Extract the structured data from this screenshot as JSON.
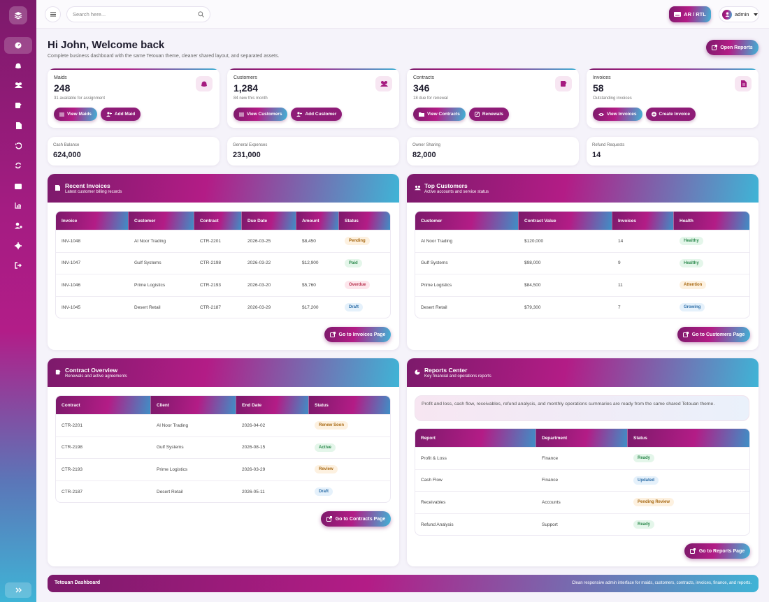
{
  "topbar": {
    "search_placeholder": "Search here...",
    "rtl_label": "AR / RTL",
    "user_label": "admin"
  },
  "header": {
    "title": "Hi John, Welcome back",
    "subtitle": "Complete business dashboard with the same Tetouan theme, cleaner shared layout, and separated assets.",
    "open_reports": "Open Reports"
  },
  "stats": [
    {
      "label": "Maids",
      "value": "248",
      "sub": "31 available for assignment",
      "icon": "broom-icon",
      "btn1": "View Maids",
      "btn2": "Add Maid"
    },
    {
      "label": "Customers",
      "value": "1,284",
      "sub": "84 new this month",
      "icon": "users-icon",
      "btn1": "View Customers",
      "btn2": "Add Customer"
    },
    {
      "label": "Contracts",
      "value": "346",
      "sub": "18 due for renewal",
      "icon": "contract-icon",
      "btn1": "View Contracts",
      "btn2": "Renewals"
    },
    {
      "label": "Invoices",
      "value": "58",
      "sub": "Outstanding invoices",
      "icon": "invoice-icon",
      "btn1": "View Invoices",
      "btn2": "Create Invoice"
    }
  ],
  "mini": [
    {
      "label": "Cash Balance",
      "value": "624,000"
    },
    {
      "label": "General Expenses",
      "value": "231,000"
    },
    {
      "label": "Owner Sharing",
      "value": "82,000"
    },
    {
      "label": "Refund Requests",
      "value": "14"
    }
  ],
  "invoices": {
    "title": "Recent Invoices",
    "subtitle": "Latest customer billing records",
    "columns": [
      "Invoice",
      "Customer",
      "Contract",
      "Due Date",
      "Amount",
      "Status"
    ],
    "rows": [
      [
        "INV-1048",
        "Al Noor Trading",
        "CTR-2201",
        "2026-03-25",
        "$8,450",
        "Pending"
      ],
      [
        "INV-1047",
        "Gulf Systems",
        "CTR-2198",
        "2026-03-22",
        "$12,900",
        "Paid"
      ],
      [
        "INV-1046",
        "Prime Logistics",
        "CTR-2193",
        "2026-03-20",
        "$5,760",
        "Overdue"
      ],
      [
        "INV-1045",
        "Desert Retail",
        "CTR-2187",
        "2026-03-29",
        "$17,200",
        "Draft"
      ]
    ],
    "button": "Go to Invoices Page"
  },
  "customers": {
    "title": "Top Customers",
    "subtitle": "Active accounts and service status",
    "columns": [
      "Customer",
      "Contract Value",
      "Invoices",
      "Health"
    ],
    "rows": [
      [
        "Al Noor Trading",
        "$120,000",
        "14",
        "Healthy"
      ],
      [
        "Gulf Systems",
        "$98,000",
        "9",
        "Healthy"
      ],
      [
        "Prime Logistics",
        "$84,500",
        "11",
        "Attention"
      ],
      [
        "Desert Retail",
        "$79,300",
        "7",
        "Growing"
      ]
    ],
    "button": "Go to Customers Page"
  },
  "contracts": {
    "title": "Contract Overview",
    "subtitle": "Renewals and active agreements",
    "columns": [
      "Contract",
      "Client",
      "End Date",
      "Status"
    ],
    "rows": [
      [
        "CTR-2201",
        "Al Noor Trading",
        "2026-04-02",
        "Renew Soon"
      ],
      [
        "CTR-2198",
        "Gulf Systems",
        "2026-08-15",
        "Active"
      ],
      [
        "CTR-2193",
        "Prime Logistics",
        "2026-03-29",
        "Review"
      ],
      [
        "CTR-2187",
        "Desert Retail",
        "2026-05-11",
        "Draft"
      ]
    ],
    "button": "Go to Contracts Page"
  },
  "reports": {
    "title": "Reports Center",
    "subtitle": "Key financial and operations reports",
    "notice": "Profit and loss, cash flow, receivables, refund analysis, and monthly operations summaries are ready from the same shared Tetouan theme.",
    "columns": [
      "Report",
      "Department",
      "Status"
    ],
    "rows": [
      [
        "Profit & Loss",
        "Finance",
        "Ready"
      ],
      [
        "Cash Flow",
        "Finance",
        "Updated"
      ],
      [
        "Receivables",
        "Accounts",
        "Pending Review"
      ],
      [
        "Refund Analysis",
        "Support",
        "Ready"
      ]
    ],
    "button": "Go to Reports Page"
  },
  "footer": {
    "left": "Tetouan Dashboard",
    "right": "Clean responsive admin interface for maids, customers, contracts, invoices, finance, and reports."
  },
  "colors": {
    "brand_dark": "#7c1a6b",
    "brand_mid": "#b31c86",
    "brand_cyan": "#3fb4d6"
  }
}
